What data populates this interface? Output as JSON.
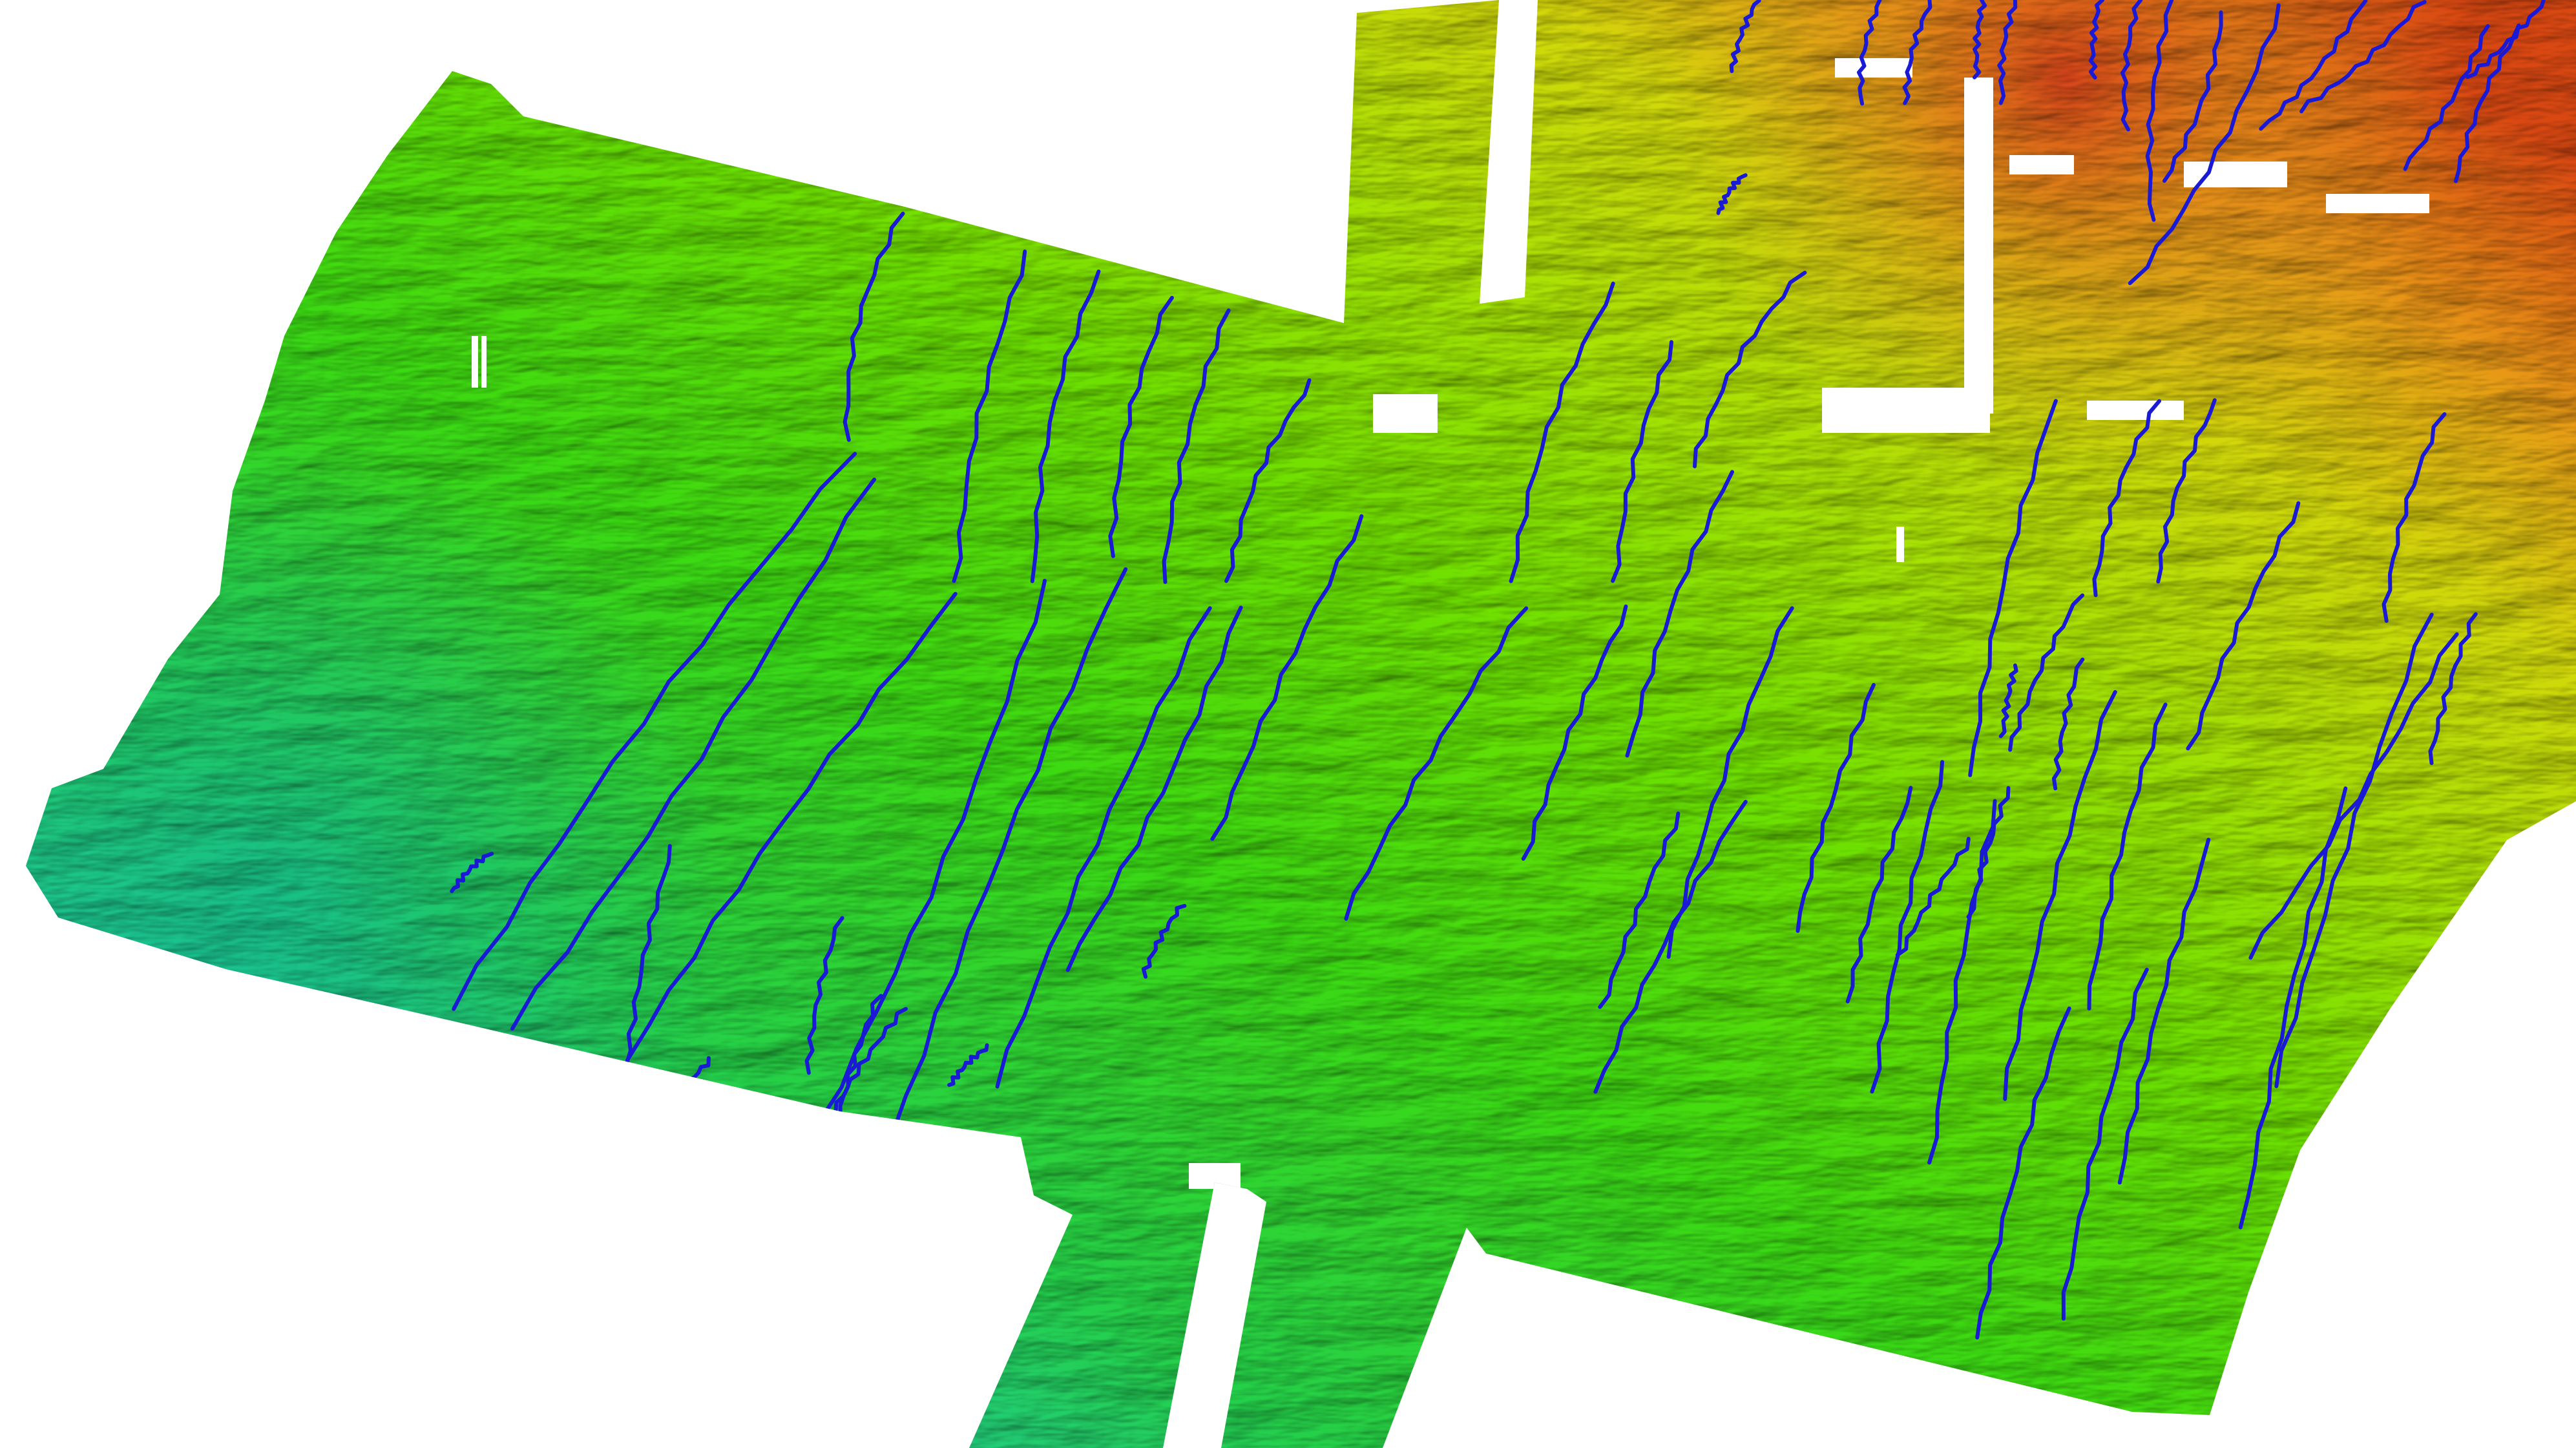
{
  "map": {
    "kind": "bathymetry relief map",
    "background_color": "#ffffff",
    "fault_line_color": "#1a1ad6",
    "colormap": [
      "#18c8b4",
      "#22d43a",
      "#5ee000",
      "#b6e400",
      "#e8d400",
      "#e08a10",
      "#d84a10"
    ],
    "fault_trace_count": 70
  }
}
